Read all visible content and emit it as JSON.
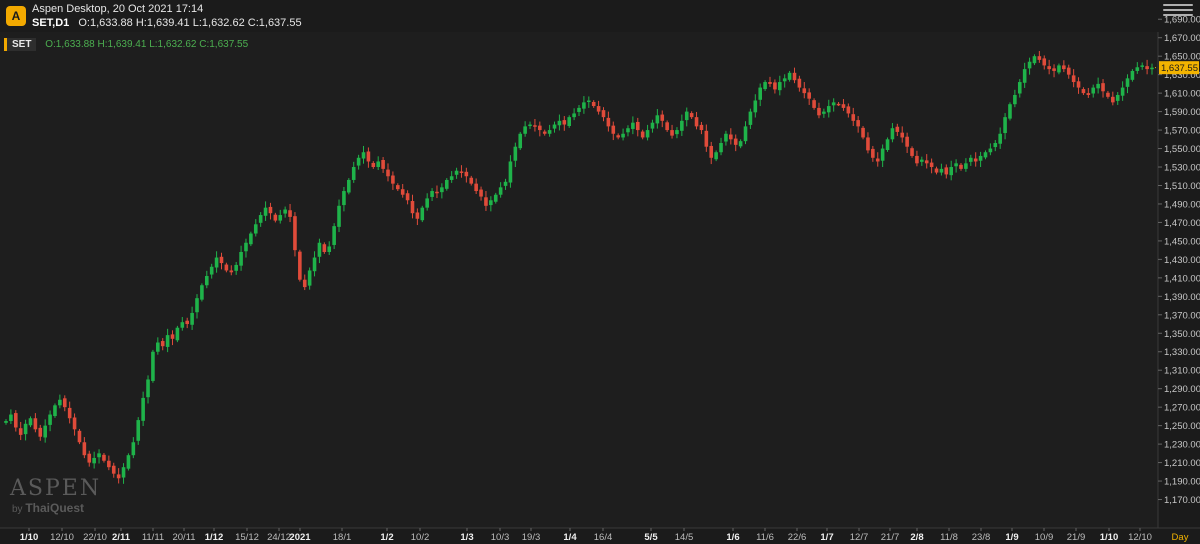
{
  "header": {
    "title": "Aspen Desktop, 20 Oct 2021 17:14",
    "symbol": "SET,D1",
    "ohlc": "O:1,633.88 H:1,639.41 L:1,632.62 C:1,637.55"
  },
  "legend": {
    "tag": "SET",
    "values": "O:1,633.88 H:1,639.41 L:1,632.62 C:1,637.55"
  },
  "logo": {
    "icon": "aspen-logo-icon",
    "letter": "A"
  },
  "watermark": {
    "brand": "ASPEN",
    "by": "by",
    "company": "ThaiQuest"
  },
  "colors": {
    "up": "#1fb34a",
    "down": "#e04b3a",
    "price_tag": "#f2b300",
    "background": "#1e1e1e"
  },
  "chart_data": {
    "type": "candlestick",
    "symbol": "SET",
    "timeframe": "D1",
    "last_price_label": "1,637.55",
    "x_axis_unit_label": "Day",
    "ylim": [
      1150,
      1700
    ],
    "y_ticks": [
      "1,170.00",
      "1,190.00",
      "1,210.00",
      "1,230.00",
      "1,250.00",
      "1,270.00",
      "1,290.00",
      "1,310.00",
      "1,330.00",
      "1,350.00",
      "1,370.00",
      "1,390.00",
      "1,410.00",
      "1,430.00",
      "1,450.00",
      "1,470.00",
      "1,490.00",
      "1,510.00",
      "1,530.00",
      "1,550.00",
      "1,570.00",
      "1,590.00",
      "1,610.00",
      "1,630.00",
      "1,650.00",
      "1,670.00",
      "1,690.00"
    ],
    "x_ticks": [
      {
        "label": "1/10",
        "bold": true
      },
      {
        "label": "12/10",
        "bold": false
      },
      {
        "label": "22/10",
        "bold": false
      },
      {
        "label": "2/11",
        "bold": true
      },
      {
        "label": "11/11",
        "bold": false
      },
      {
        "label": "20/11",
        "bold": false
      },
      {
        "label": "1/12",
        "bold": true
      },
      {
        "label": "15/12",
        "bold": false
      },
      {
        "label": "24/12",
        "bold": false
      },
      {
        "label": "2021",
        "bold": true
      },
      {
        "label": "18/1",
        "bold": false
      },
      {
        "label": "1/2",
        "bold": true
      },
      {
        "label": "10/2",
        "bold": false
      },
      {
        "label": "1/3",
        "bold": true
      },
      {
        "label": "10/3",
        "bold": false
      },
      {
        "label": "19/3",
        "bold": false
      },
      {
        "label": "1/4",
        "bold": true
      },
      {
        "label": "16/4",
        "bold": false
      },
      {
        "label": "5/5",
        "bold": true
      },
      {
        "label": "14/5",
        "bold": false
      },
      {
        "label": "1/6",
        "bold": true
      },
      {
        "label": "11/6",
        "bold": false
      },
      {
        "label": "22/6",
        "bold": false
      },
      {
        "label": "1/7",
        "bold": true
      },
      {
        "label": "12/7",
        "bold": false
      },
      {
        "label": "21/7",
        "bold": false
      },
      {
        "label": "2/8",
        "bold": true
      },
      {
        "label": "11/8",
        "bold": false
      },
      {
        "label": "23/8",
        "bold": false
      },
      {
        "label": "1/9",
        "bold": true
      },
      {
        "label": "10/9",
        "bold": false
      },
      {
        "label": "21/9",
        "bold": false
      },
      {
        "label": "1/10",
        "bold": true
      },
      {
        "label": "12/10",
        "bold": false
      }
    ],
    "close_path": [
      1255,
      1262,
      1248,
      1240,
      1252,
      1258,
      1246,
      1238,
      1250,
      1262,
      1272,
      1278,
      1270,
      1258,
      1246,
      1232,
      1218,
      1210,
      1215,
      1220,
      1212,
      1205,
      1198,
      1193,
      1205,
      1218,
      1232,
      1256,
      1280,
      1300,
      1330,
      1340,
      1336,
      1348,
      1344,
      1356,
      1362,
      1360,
      1372,
      1388,
      1402,
      1412,
      1422,
      1432,
      1426,
      1418,
      1416,
      1424,
      1438,
      1448,
      1458,
      1468,
      1478,
      1486,
      1480,
      1472,
      1478,
      1484,
      1476,
      1440,
      1408,
      1400,
      1418,
      1432,
      1448,
      1438,
      1444,
      1466,
      1488,
      1504,
      1516,
      1530,
      1540,
      1546,
      1536,
      1530,
      1536,
      1528,
      1520,
      1512,
      1506,
      1500,
      1494,
      1480,
      1474,
      1486,
      1496,
      1504,
      1502,
      1508,
      1516,
      1520,
      1526,
      1524,
      1520,
      1512,
      1504,
      1498,
      1488,
      1494,
      1500,
      1508,
      1514,
      1536,
      1552,
      1566,
      1574,
      1576,
      1574,
      1570,
      1566,
      1570,
      1576,
      1580,
      1576,
      1584,
      1588,
      1594,
      1600,
      1602,
      1596,
      1590,
      1584,
      1574,
      1566,
      1562,
      1566,
      1572,
      1578,
      1570,
      1562,
      1570,
      1578,
      1586,
      1580,
      1570,
      1564,
      1570,
      1580,
      1590,
      1584,
      1574,
      1570,
      1552,
      1540,
      1546,
      1556,
      1566,
      1560,
      1554,
      1558,
      1574,
      1590,
      1602,
      1616,
      1622,
      1620,
      1614,
      1622,
      1626,
      1632,
      1624,
      1616,
      1610,
      1604,
      1594,
      1586,
      1590,
      1596,
      1600,
      1598,
      1594,
      1588,
      1580,
      1574,
      1562,
      1548,
      1540,
      1536,
      1550,
      1560,
      1572,
      1568,
      1562,
      1552,
      1542,
      1534,
      1538,
      1534,
      1530,
      1524,
      1528,
      1522,
      1530,
      1534,
      1528,
      1534,
      1540,
      1536,
      1542,
      1546,
      1550,
      1556,
      1566,
      1584,
      1598,
      1608,
      1622,
      1636,
      1644,
      1650,
      1646,
      1640,
      1636,
      1634,
      1640,
      1636,
      1630,
      1622,
      1616,
      1610,
      1608,
      1616,
      1620,
      1612,
      1606,
      1600,
      1608,
      1616,
      1626,
      1634,
      1638,
      1640,
      1636,
      1637.55
    ]
  }
}
